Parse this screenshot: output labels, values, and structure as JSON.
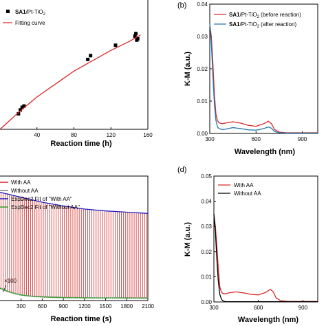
{
  "chart_data": [
    {
      "panel": "a",
      "type": "scatter",
      "xlabel": "Reaction time (h)",
      "xlim": [
        0,
        160
      ],
      "ylim": [
        0,
        1
      ],
      "xticks": [
        "40",
        "80",
        "120",
        "160"
      ],
      "legend": {
        "placement": "top-left",
        "entries": [
          {
            "label_main": "SA1",
            "label_rest": "/Pt-TiO",
            "label_sub": "2",
            "marker": "square"
          },
          {
            "label_main": "Fitting curve",
            "label_rest": "",
            "label_sub": "",
            "marker": "line"
          }
        ]
      },
      "series": [
        {
          "kind": "points",
          "color": "#000000",
          "x": [
            20,
            22,
            24,
            26,
            95,
            98,
            125,
            146,
            147,
            148,
            149
          ],
          "y": [
            0.12,
            0.15,
            0.17,
            0.18,
            0.54,
            0.57,
            0.65,
            0.72,
            0.74,
            0.69,
            0.7
          ]
        },
        {
          "kind": "curve",
          "color": "#d62728",
          "x": [
            0,
            20,
            40,
            60,
            80,
            100,
            120,
            140,
            152
          ],
          "y": [
            0.0,
            0.13,
            0.25,
            0.35,
            0.45,
            0.53,
            0.61,
            0.68,
            0.73
          ]
        }
      ]
    },
    {
      "panel": "b",
      "type": "line",
      "label": "(b)",
      "xlabel": "Wavelength (nm)",
      "ylabel": "K-M (a.u.)",
      "xlim": [
        300,
        1000
      ],
      "ylim": [
        0,
        0.04
      ],
      "xticks": [
        "300",
        "600",
        "900"
      ],
      "yticks": [
        "0.00",
        "0.01",
        "0.02",
        "0.03",
        "0.04"
      ],
      "legend": {
        "placement": "top-right",
        "entries": [
          {
            "label_main": "SA1",
            "label_rest": "/Pt-TiO",
            "label_sub": "2",
            "label_tail": " (before reaction)",
            "color": "#d62728"
          },
          {
            "label_main": "SA1",
            "label_rest": "/Pt-TiO",
            "label_sub": "2",
            "label_tail": " (after reaction)",
            "color": "#1f77b4"
          }
        ]
      },
      "series": [
        {
          "name": "before reaction",
          "color": "#d62728",
          "x": [
            300,
            310,
            320,
            330,
            340,
            350,
            360,
            380,
            400,
            450,
            500,
            550,
            600,
            650,
            680,
            700,
            720,
            750,
            800,
            900,
            1000
          ],
          "y": [
            0.034,
            0.03,
            0.022,
            0.012,
            0.006,
            0.004,
            0.0033,
            0.003,
            0.0032,
            0.0036,
            0.0032,
            0.0025,
            0.0022,
            0.003,
            0.0038,
            0.003,
            0.0012,
            0.0004,
            0.0002,
            0.0002,
            0.0002
          ]
        },
        {
          "name": "after reaction",
          "color": "#1f77b4",
          "x": [
            300,
            310,
            320,
            330,
            340,
            350,
            360,
            380,
            400,
            450,
            500,
            550,
            600,
            650,
            680,
            700,
            720,
            750,
            800,
            900,
            1000
          ],
          "y": [
            0.034,
            0.028,
            0.018,
            0.009,
            0.004,
            0.002,
            0.0015,
            0.0012,
            0.0013,
            0.0018,
            0.0015,
            0.0011,
            0.001,
            0.0015,
            0.002,
            0.0016,
            0.0006,
            0.0002,
            0.0001,
            0.0001,
            0.0001
          ]
        }
      ]
    },
    {
      "panel": "c",
      "type": "line",
      "xlabel": "Reaction time (s)",
      "xlim": [
        0,
        2100
      ],
      "ylim": [
        0,
        1
      ],
      "xticks": [
        "300",
        "600",
        "900",
        "1200",
        "1500",
        "1800",
        "2100"
      ],
      "annotation": "×100",
      "legend": {
        "placement": "top-left",
        "entries": [
          {
            "label": "With AA",
            "color": "#d62728"
          },
          {
            "label": "Without AA",
            "color": "#7f7f7f"
          },
          {
            "label": "ExpDec2 Fit of \"With AA\"",
            "color": "#1f1fbf"
          },
          {
            "label": "ExpDec2 Fit of \"Without AA\"",
            "color": "#2ca02c"
          }
        ]
      },
      "series": [
        {
          "name": "With AA (envelope)",
          "color": "#d62728",
          "x": [
            0,
            300,
            600,
            900,
            1200,
            1500,
            1800,
            2100
          ],
          "y": [
            0.87,
            0.83,
            0.79,
            0.76,
            0.735,
            0.72,
            0.71,
            0.7
          ]
        },
        {
          "name": "Without AA",
          "color": "#2ca02c",
          "x": [
            0,
            100,
            200,
            300,
            400,
            500,
            700,
            900,
            1200,
            2100
          ],
          "y": [
            0.1,
            0.075,
            0.058,
            0.045,
            0.038,
            0.032,
            0.027,
            0.024,
            0.022,
            0.02
          ]
        }
      ],
      "spikes": {
        "count": 70,
        "color": "#d62728"
      }
    },
    {
      "panel": "d",
      "type": "line",
      "label": "(d)",
      "xlabel": "Wavelength (nm)",
      "ylabel": "K-M (a.u.)",
      "xlim": [
        300,
        1000
      ],
      "ylim": [
        0,
        0.05
      ],
      "xticks": [
        "300",
        "600",
        "900"
      ],
      "yticks": [
        "0.00",
        "0.01",
        "0.02",
        "0.03",
        "0.04",
        "0.05"
      ],
      "legend": {
        "placement": "top-left",
        "entries": [
          {
            "label": "With AA",
            "color": "#d62728"
          },
          {
            "label": "Without AA",
            "color": "#000000"
          }
        ]
      },
      "series": [
        {
          "name": "With AA",
          "color": "#d62728",
          "x": [
            300,
            310,
            320,
            330,
            340,
            350,
            360,
            380,
            400,
            450,
            500,
            550,
            600,
            650,
            680,
            700,
            720,
            750,
            800,
            900,
            1000
          ],
          "y": [
            0.035,
            0.03,
            0.022,
            0.013,
            0.006,
            0.004,
            0.0034,
            0.0032,
            0.0036,
            0.004,
            0.0036,
            0.003,
            0.0028,
            0.0038,
            0.005,
            0.004,
            0.0015,
            0.0005,
            0.0002,
            0.0002,
            0.0002
          ]
        },
        {
          "name": "Without AA",
          "color": "#000000",
          "x": [
            300,
            310,
            320,
            330,
            340,
            350,
            360,
            370,
            380,
            400,
            500,
            1000
          ],
          "y": [
            0.035,
            0.028,
            0.017,
            0.008,
            0.003,
            0.0012,
            0.0005,
            0.0002,
            0.0001,
            0.0001,
            0.0001,
            0.0001
          ]
        }
      ]
    }
  ]
}
